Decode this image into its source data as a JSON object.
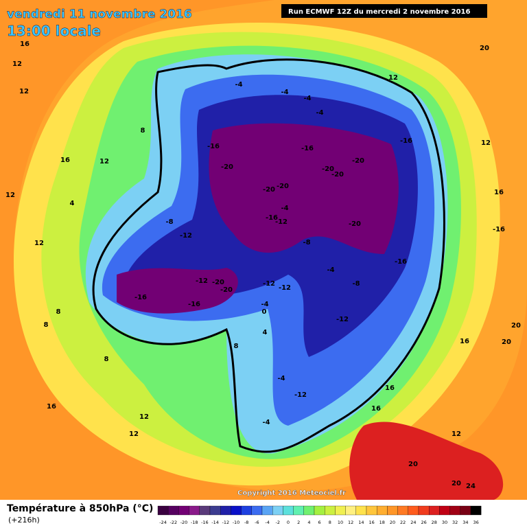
{
  "header": {
    "date": "vendredi 11 novembre 2016",
    "time": "13:00 locale",
    "run": "Run ECMWF 12Z du mercredi 2 novembre 2016"
  },
  "map": {
    "copyright": "Copyright 2016 Meteociel.fr",
    "labels": [
      "16",
      "12",
      "12",
      "16",
      "12",
      "8",
      "12",
      "4",
      "12",
      "8",
      "8",
      "8",
      "16",
      "12",
      "12",
      "-4",
      "-4",
      "-4",
      "-4",
      "-4",
      "-16",
      "-20",
      "-16",
      "-20",
      "-20",
      "-20",
      "-20",
      "-16",
      "-20",
      "-20",
      "-12",
      "-8",
      "-12",
      "-8",
      "-16",
      "-20",
      "-16",
      "-16",
      "-12",
      "-12",
      "-4",
      "-8",
      "-12",
      "-16",
      "-12",
      "-4",
      "-4",
      "0",
      "4",
      "8",
      "-4",
      "-12",
      "-20",
      "12",
      "12",
      "16",
      "-16",
      "16",
      "20",
      "16",
      "16",
      "12",
      "20",
      "20",
      "24",
      "20",
      "20"
    ]
  },
  "legend": {
    "title": "Température à 850hPa (°C)",
    "lead": "(+216h)",
    "scale": [
      -24,
      -22,
      -20,
      -18,
      -16,
      -14,
      -12,
      -10,
      -8,
      -6,
      -4,
      -2,
      0,
      2,
      4,
      6,
      8,
      10,
      12,
      14,
      16,
      18,
      20,
      22,
      24,
      26,
      28,
      30,
      32,
      34,
      36
    ],
    "colors": [
      "#3a0040",
      "#560060",
      "#720074",
      "#8a1a8a",
      "#5a3a7a",
      "#3c3c90",
      "#2020a8",
      "#0a10c8",
      "#1e40e0",
      "#3c6cf0",
      "#5aa4f4",
      "#7cd0f4",
      "#5ce0dc",
      "#60f0b0",
      "#70f070",
      "#a4f040",
      "#ccf040",
      "#f0f050",
      "#fff080",
      "#ffe24c",
      "#ffc63c",
      "#ffae30",
      "#ff9628",
      "#ff7a24",
      "#ff5c1e",
      "#f03c1e",
      "#dc2020",
      "#c00014",
      "#a00014",
      "#780014",
      "#000000"
    ]
  }
}
